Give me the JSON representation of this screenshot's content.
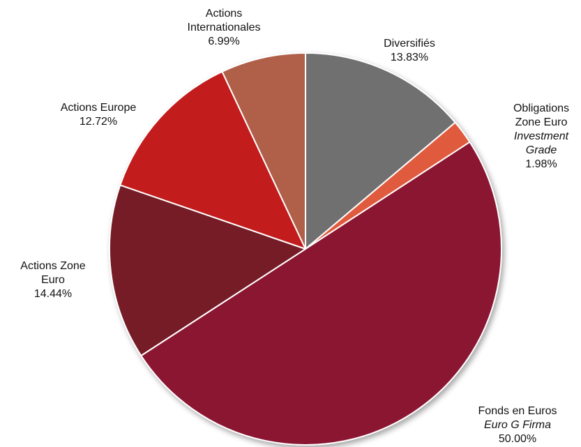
{
  "chart_data": {
    "type": "pie",
    "start_angle_deg": 0,
    "direction": "clockwise",
    "slices": [
      {
        "id": "diversifies",
        "lines": [
          "Diversifiés"
        ],
        "italic_lines": [],
        "value_label": "13.83%",
        "value": 13.83,
        "color": "#6f6f6f"
      },
      {
        "id": "obligations",
        "lines": [
          "Obligations",
          "Zone Euro"
        ],
        "italic_lines": [
          "Investment",
          "Grade"
        ],
        "value_label": "1.98%",
        "value": 1.98,
        "color": "#e05a3c"
      },
      {
        "id": "fonds",
        "lines": [
          "Fonds en Euros"
        ],
        "italic_lines": [
          "Euro G Firma"
        ],
        "value_label": "50.00%",
        "value": 50.0,
        "color": "#8b1330"
      },
      {
        "id": "zone-euro",
        "lines": [
          "Actions Zone",
          "Euro"
        ],
        "italic_lines": [],
        "value_label": "14.44%",
        "value": 14.44,
        "color": "#741f27"
      },
      {
        "id": "europe",
        "lines": [
          "Actions Europe"
        ],
        "italic_lines": [],
        "value_label": "12.72%",
        "value": 12.72,
        "color": "#c21c1a"
      },
      {
        "id": "internationales",
        "lines": [
          "Actions",
          "Internationales"
        ],
        "italic_lines": [],
        "value_label": "6.99%",
        "value": 6.99,
        "color": "#b05e4a"
      }
    ]
  }
}
